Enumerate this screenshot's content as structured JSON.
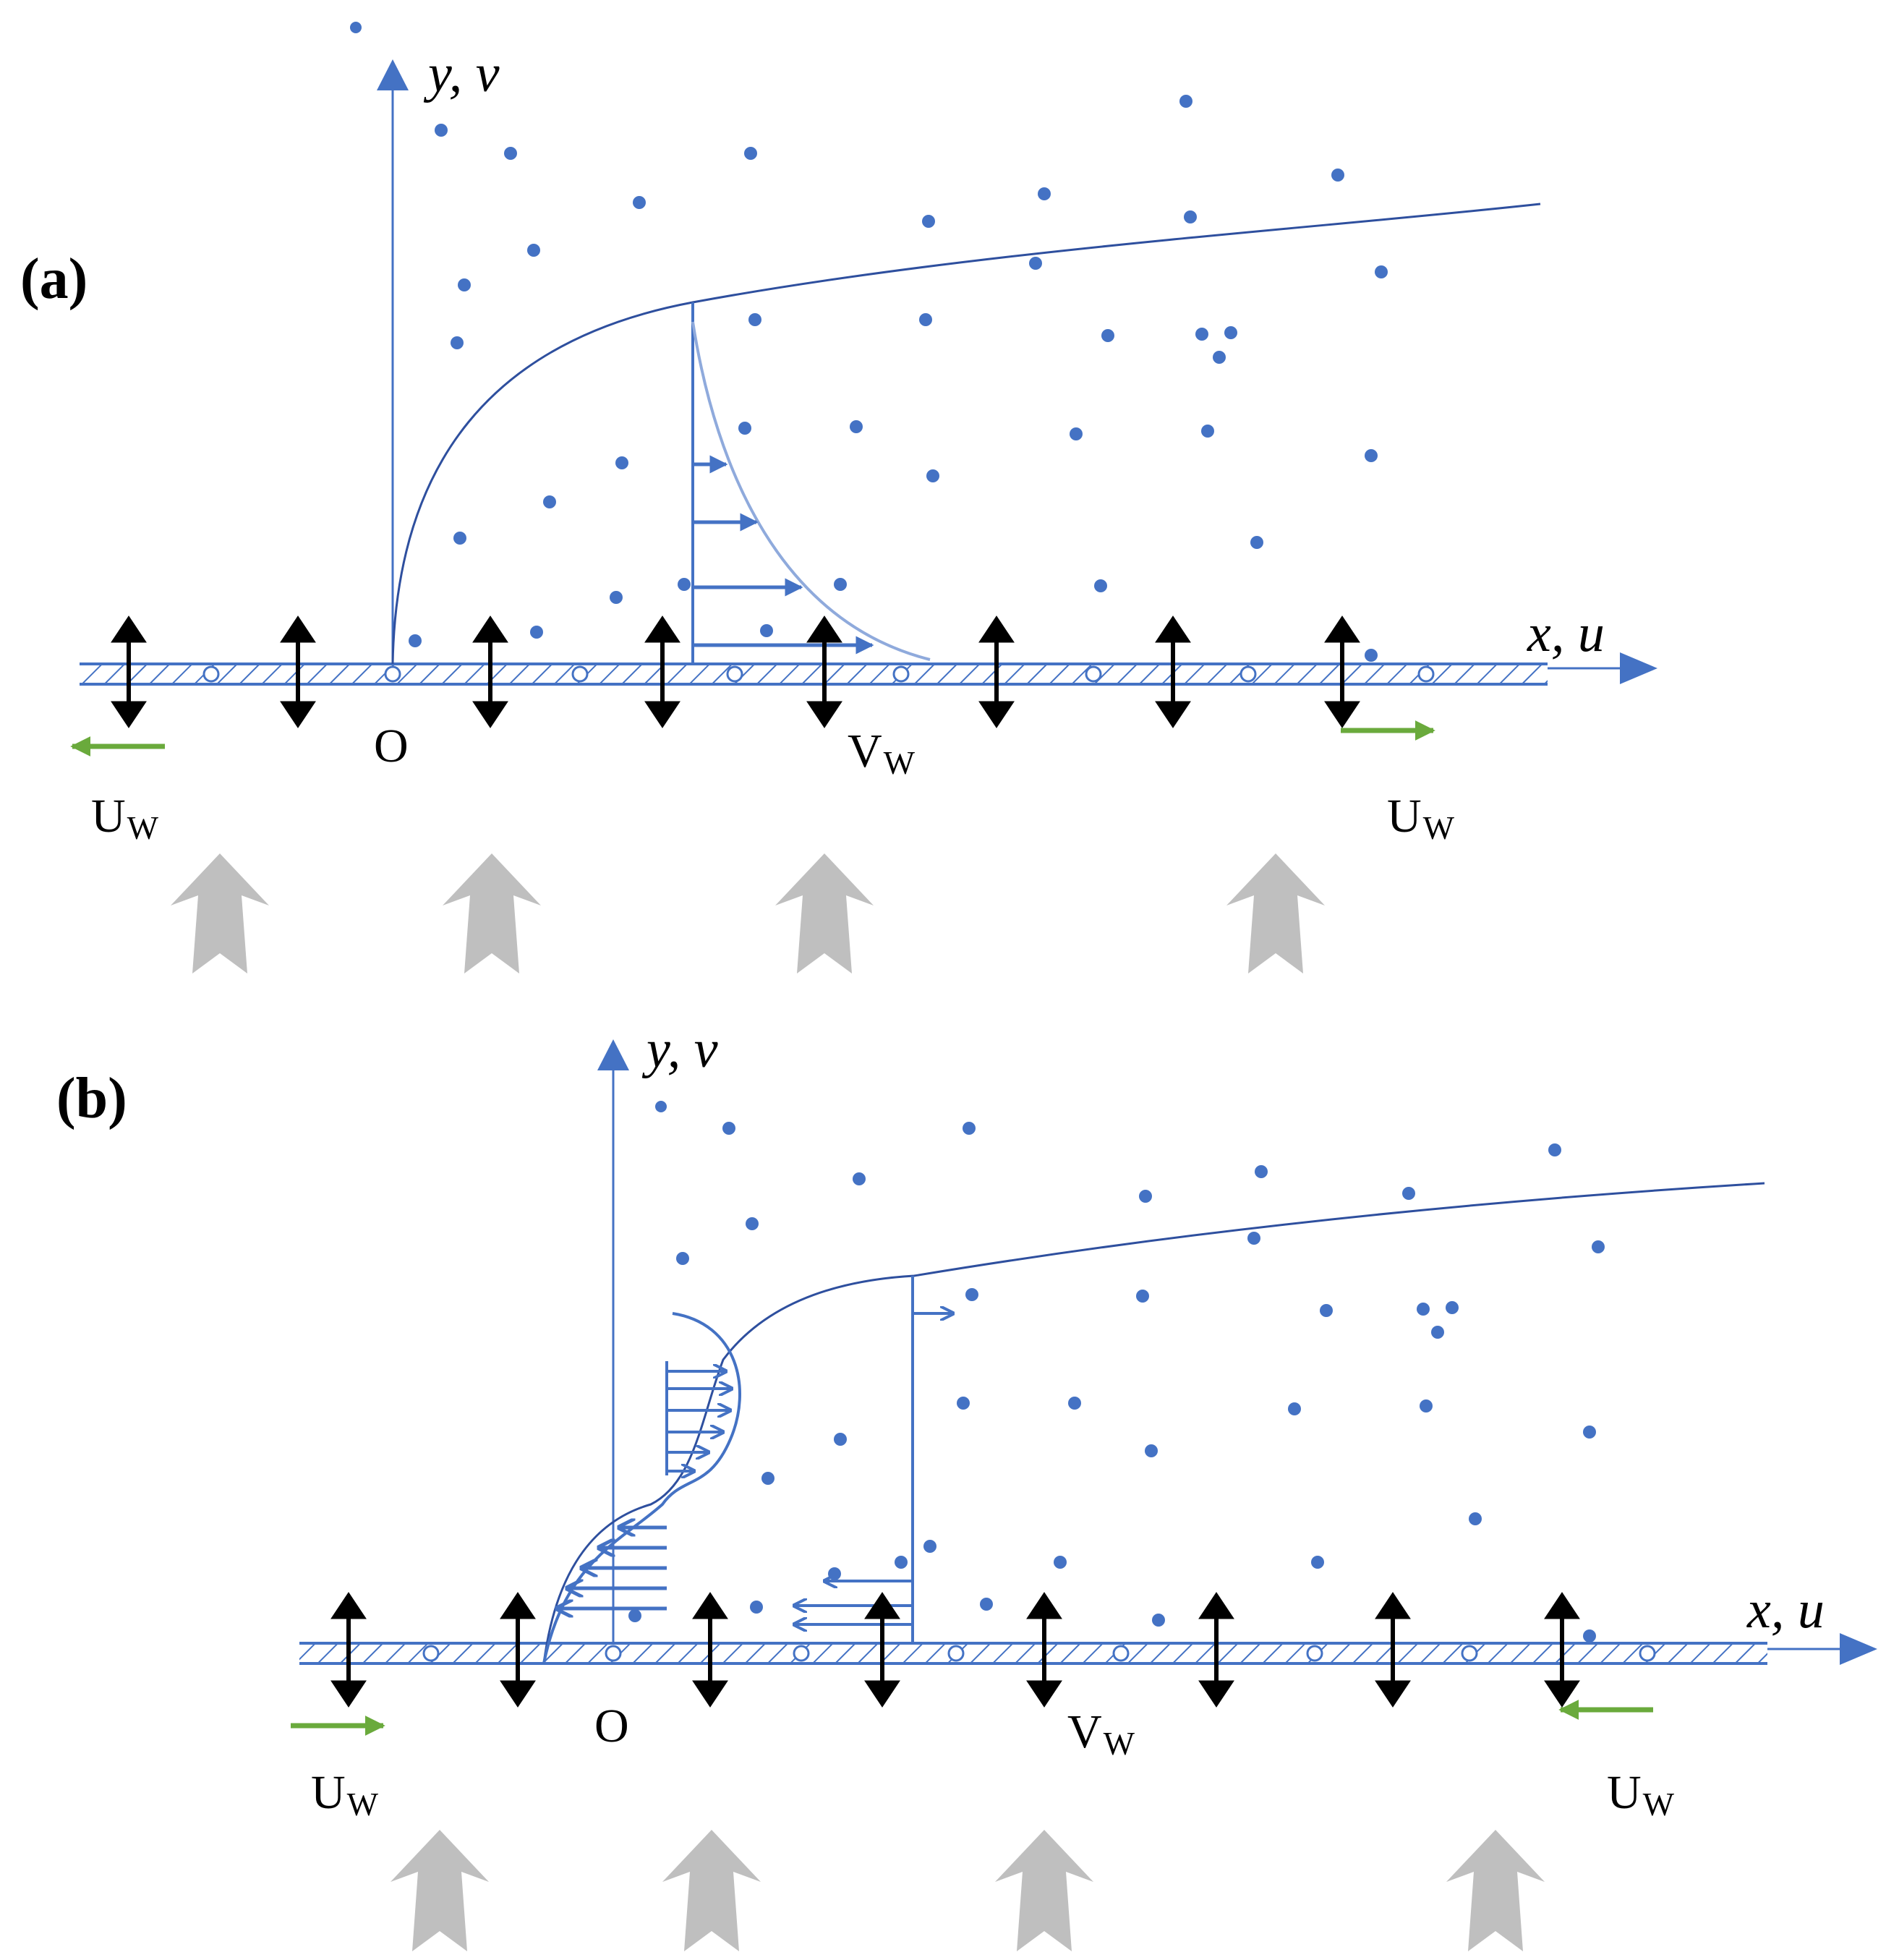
{
  "panels": [
    {
      "panel_label": "(a)",
      "y_axis_label": "y, v",
      "x_axis_label": "x, u",
      "origin_label": "O",
      "suction_label": "V",
      "suction_subscript": "W",
      "wall_velocity_label": "U",
      "wall_velocity_subscript": "W",
      "wall_motion": "stretching",
      "velocity_profile": "monotonic",
      "colors": {
        "wall": "#4472c4",
        "boundary_layer": "#2e4f9e",
        "particles": "#4472c4",
        "wall_arrows": "#6aaa3c",
        "suction_arrows": "#000000",
        "flow_arrows": "#bfbfbf"
      }
    },
    {
      "panel_label": "(b)",
      "y_axis_label": "y, v",
      "x_axis_label": "x, u",
      "origin_label": "O",
      "suction_label": "V",
      "suction_subscript": "W",
      "wall_velocity_label": "U",
      "wall_velocity_subscript": "W",
      "wall_motion": "shrinking",
      "velocity_profile": "reversed near wall",
      "colors": {
        "wall": "#4472c4",
        "boundary_layer": "#2e4f9e",
        "particles": "#4472c4",
        "wall_arrows": "#6aaa3c",
        "suction_arrows": "#000000",
        "flow_arrows": "#bfbfbf"
      }
    }
  ]
}
